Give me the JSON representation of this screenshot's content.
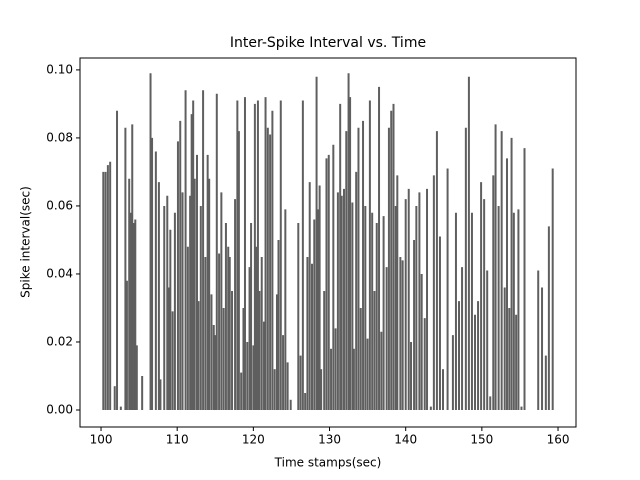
{
  "chart_data": {
    "type": "stem",
    "title": "Inter-Spike Interval vs. Time",
    "xlabel": "Time stamps(sec)",
    "ylabel": "Spike interval(sec)",
    "color": "#5f5f5f",
    "xlim": [
      97.24,
      162.36
    ],
    "ylim": [
      -0.005,
      0.1035
    ],
    "xticks": [
      100,
      110,
      120,
      130,
      140,
      150,
      160
    ],
    "yticks": [
      {
        "value": 0,
        "label": "0.00"
      },
      {
        "value": 0.02,
        "label": "0.02"
      },
      {
        "value": 0.04,
        "label": "0.04"
      },
      {
        "value": 0.06,
        "label": "0.06"
      },
      {
        "value": 0.08,
        "label": "0.08"
      },
      {
        "value": 0.1,
        "label": "0.10"
      }
    ],
    "x": [
      100.3,
      100.6,
      100.9,
      101.2,
      101.8,
      102.1,
      102.6,
      103.2,
      103.4,
      103.7,
      103.9,
      104.1,
      104.3,
      104.5,
      104.7,
      105.4,
      106.5,
      106.7,
      107.2,
      107.6,
      107.8,
      108.3,
      108.7,
      108.9,
      109.1,
      109.4,
      109.7,
      110.1,
      110.4,
      110.7,
      111.1,
      111.4,
      111.7,
      111.9,
      112.1,
      112.3,
      112.6,
      112.8,
      113.1,
      113.4,
      113.7,
      114.0,
      114.2,
      114.5,
      114.8,
      115.0,
      115.2,
      115.5,
      115.8,
      116.1,
      116.4,
      116.7,
      116.9,
      117.2,
      117.6,
      117.9,
      118.1,
      118.4,
      118.7,
      118.9,
      119.2,
      119.5,
      119.7,
      120.0,
      120.2,
      120.4,
      120.6,
      120.8,
      121.1,
      121.4,
      121.6,
      121.9,
      122.2,
      122.5,
      122.8,
      123.1,
      123.3,
      123.6,
      123.9,
      124.2,
      124.5,
      124.9,
      125.9,
      126.2,
      126.5,
      126.8,
      127.1,
      127.4,
      127.7,
      128.0,
      128.3,
      128.5,
      128.7,
      128.9,
      129.3,
      129.6,
      129.9,
      130.2,
      130.5,
      130.8,
      131.1,
      131.4,
      131.6,
      131.9,
      132.2,
      132.5,
      132.7,
      133.0,
      133.2,
      133.5,
      133.8,
      134.1,
      134.4,
      134.7,
      135.0,
      135.3,
      135.6,
      135.9,
      136.2,
      136.5,
      136.8,
      137.1,
      137.5,
      137.8,
      138.1,
      138.4,
      138.7,
      138.9,
      139.3,
      139.6,
      140.0,
      140.4,
      140.7,
      141.1,
      141.4,
      141.8,
      142.1,
      142.5,
      142.8,
      143.3,
      143.7,
      144.1,
      144.5,
      144.9,
      145.5,
      146.2,
      146.6,
      147.0,
      147.4,
      147.9,
      148.3,
      148.7,
      149.1,
      149.5,
      149.9,
      150.3,
      150.7,
      151.1,
      151.5,
      151.8,
      152.2,
      152.6,
      153.0,
      153.3,
      153.6,
      153.9,
      154.2,
      154.5,
      154.8,
      155.2,
      155.6,
      157.4,
      157.9,
      158.4,
      158.8,
      159.3
    ],
    "values": [
      0.07,
      0.07,
      0.072,
      0.073,
      0.007,
      0.088,
      0.001,
      0.083,
      0.038,
      0.068,
      0.058,
      0.084,
      0.055,
      0.056,
      0.019,
      0.01,
      0.099,
      0.08,
      0.076,
      0.067,
      0.009,
      0.06,
      0.063,
      0.036,
      0.053,
      0.029,
      0.058,
      0.079,
      0.085,
      0.064,
      0.094,
      0.048,
      0.063,
      0.087,
      0.091,
      0.068,
      0.075,
      0.032,
      0.06,
      0.094,
      0.045,
      0.075,
      0.068,
      0.034,
      0.025,
      0.022,
      0.093,
      0.046,
      0.064,
      0.03,
      0.055,
      0.048,
      0.045,
      0.035,
      0.062,
      0.091,
      0.082,
      0.011,
      0.03,
      0.092,
      0.02,
      0.042,
      0.055,
      0.019,
      0.09,
      0.048,
      0.091,
      0.035,
      0.045,
      0.026,
      0.092,
      0.083,
      0.081,
      0.088,
      0.012,
      0.034,
      0.05,
      0.091,
      0.022,
      0.059,
      0.014,
      0.003,
      0.055,
      0.016,
      0.091,
      0.005,
      0.045,
      0.067,
      0.043,
      0.056,
      0.098,
      0.059,
      0.066,
      0.012,
      0.035,
      0.074,
      0.075,
      0.018,
      0.078,
      0.024,
      0.064,
      0.09,
      0.063,
      0.065,
      0.082,
      0.099,
      0.092,
      0.061,
      0.018,
      0.07,
      0.083,
      0.03,
      0.085,
      0.06,
      0.021,
      0.091,
      0.058,
      0.035,
      0.055,
      0.095,
      0.023,
      0.057,
      0.042,
      0.083,
      0.088,
      0.09,
      0.06,
      0.069,
      0.045,
      0.044,
      0.062,
      0.065,
      0.02,
      0.05,
      0.06,
      0.064,
      0.04,
      0.027,
      0.065,
      0.001,
      0.069,
      0.082,
      0.051,
      0.012,
      0.071,
      0.022,
      0.058,
      0.032,
      0.042,
      0.083,
      0.098,
      0.058,
      0.028,
      0.032,
      0.067,
      0.062,
      0.041,
      0.004,
      0.069,
      0.084,
      0.06,
      0.082,
      0.036,
      0.074,
      0.03,
      0.08,
      0.058,
      0.028,
      0.059,
      0.001,
      0.077,
      0.041,
      0.036,
      0.016,
      0.054,
      0.071
    ]
  }
}
